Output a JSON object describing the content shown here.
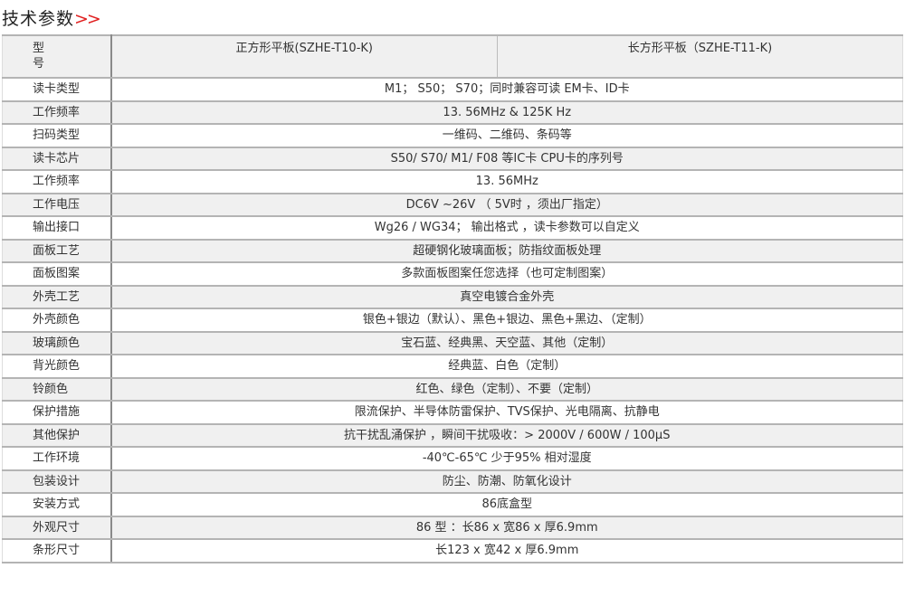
{
  "title": "技术参数",
  "title_arrows": ">>",
  "accent_color": "#e02020",
  "header": {
    "label_line1": "型",
    "label_line2": "号",
    "model_a": "正方形平板(SZHE-T10-K)",
    "model_b": "长方形平板（SZHE-T11-K)"
  },
  "rows": [
    {
      "label": "读卡类型",
      "value": "M1； S50； S70；同时兼容可读 EM卡、ID卡"
    },
    {
      "label": "工作频率",
      "value": "13. 56MHz & 125K Hz"
    },
    {
      "label": "扫码类型",
      "value": "一维码、二维码、条码等"
    },
    {
      "label": "读卡芯片",
      "value": "S50/ S70/ M1/ F08 等IC卡 CPU卡的序列号"
    },
    {
      "label": "工作频率",
      "value": "13. 56MHz"
    },
    {
      "label": "工作电压",
      "value": "DC6V ~26V （ 5V时 ，须出厂指定）"
    },
    {
      "label": "输出接口",
      "value": "Wg26 / WG34； 输出格式 ，读卡参数可以自定义"
    },
    {
      "label": "面板工艺",
      "value": "超硬钢化玻璃面板；防指纹面板处理"
    },
    {
      "label": "面板图案",
      "value": "多款面板图案任您选择（也可定制图案）"
    },
    {
      "label": "外壳工艺",
      "value": "真空电镀合金外壳"
    },
    {
      "label": "外壳颜色",
      "value": "银色+银边（默认）、黑色+银边、黑色+黑边、（定制）"
    },
    {
      "label": "玻璃颜色",
      "value": "宝石蓝、经典黑、天空蓝、其他（定制）"
    },
    {
      "label": "背光颜色",
      "value": "经典蓝、白色（定制）"
    },
    {
      "label": "铃颜色",
      "value": "红色、绿色（定制）、不要（定制）"
    },
    {
      "label": "保护措施",
      "value": "限流保护、半导体防雷保护、TVS保护、光电隔离、抗静电"
    },
    {
      "label": "其他保护",
      "value": "抗干扰乱涌保护 ，瞬间干扰吸收：> 2000V / 600W / 100μS"
    },
    {
      "label": "工作环境",
      "value": "-40℃-65℃  少于95% 相对湿度"
    },
    {
      "label": "包装设计",
      "value": "防尘、防潮、防氧化设计"
    },
    {
      "label": "安装方式",
      "value": "86底盒型"
    },
    {
      "label": "外观尺寸",
      "value": "86  型 ：长86 x 宽86 x 厚6.9mm"
    },
    {
      "label": "条形尺寸",
      "value": "长123 x 宽42 x 厚6.9mm"
    }
  ]
}
